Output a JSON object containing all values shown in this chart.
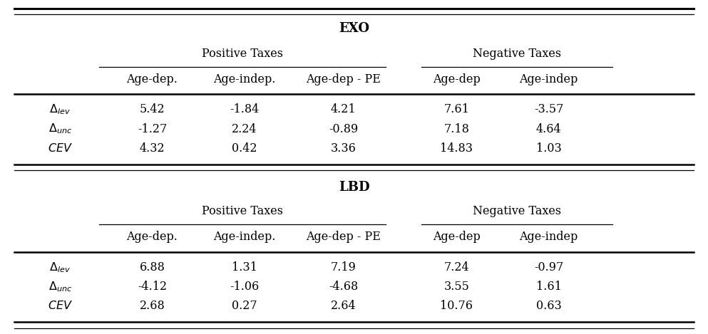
{
  "title_exo": "EXO",
  "title_lbd": "LBD",
  "pos_taxes_label": "Positive Taxes",
  "neg_taxes_label": "Negative Taxes",
  "col_headers": [
    "Age-dep.",
    "Age-indep.",
    "Age-dep - PE",
    "Age-dep",
    "Age-indep"
  ],
  "exo_data": [
    [
      "5.42",
      "-1.84",
      "4.21",
      "7.61",
      "-3.57"
    ],
    [
      "-1.27",
      "2.24",
      "-0.89",
      "7.18",
      "4.64"
    ],
    [
      "4.32",
      "0.42",
      "3.36",
      "14.83",
      "1.03"
    ]
  ],
  "lbd_data": [
    [
      "6.88",
      "1.31",
      "7.19",
      "7.24",
      "-0.97"
    ],
    [
      "-4.12",
      "-1.06",
      "-4.68",
      "3.55",
      "1.61"
    ],
    [
      "2.68",
      "0.27",
      "2.64",
      "10.76",
      "0.63"
    ]
  ],
  "background_color": "#ffffff",
  "text_color": "#000000",
  "font_size": 11.5,
  "title_font_size": 13
}
